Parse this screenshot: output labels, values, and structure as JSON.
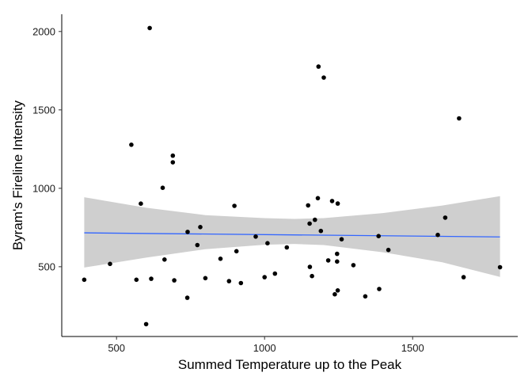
{
  "chart_data": {
    "type": "scatter",
    "title": "",
    "xlabel": "Summed Temperature up to the Peak",
    "ylabel": "Byram's Fireline Intensity",
    "xlim": [
      315,
      1855
    ],
    "ylim": [
      55,
      2110
    ],
    "x_ticks": [
      500,
      1000,
      1500
    ],
    "y_ticks": [
      500,
      1000,
      1500,
      2000
    ],
    "grid": false,
    "legend": "none",
    "colors": {
      "points": "#000000",
      "fit_line": "#3366ff",
      "ribbon": "#cccccc",
      "axis": "#000000"
    },
    "points": [
      {
        "x": 391,
        "y": 417
      },
      {
        "x": 478,
        "y": 518
      },
      {
        "x": 550,
        "y": 1278
      },
      {
        "x": 567,
        "y": 417
      },
      {
        "x": 582,
        "y": 902
      },
      {
        "x": 600,
        "y": 134
      },
      {
        "x": 612,
        "y": 2022
      },
      {
        "x": 617,
        "y": 423
      },
      {
        "x": 656,
        "y": 1003
      },
      {
        "x": 662,
        "y": 546
      },
      {
        "x": 690,
        "y": 1208
      },
      {
        "x": 690,
        "y": 1166
      },
      {
        "x": 695,
        "y": 413
      },
      {
        "x": 739,
        "y": 302
      },
      {
        "x": 740,
        "y": 722
      },
      {
        "x": 773,
        "y": 638
      },
      {
        "x": 783,
        "y": 753
      },
      {
        "x": 800,
        "y": 427
      },
      {
        "x": 851,
        "y": 551
      },
      {
        "x": 880,
        "y": 408
      },
      {
        "x": 898,
        "y": 888
      },
      {
        "x": 905,
        "y": 599
      },
      {
        "x": 920,
        "y": 396
      },
      {
        "x": 970,
        "y": 692
      },
      {
        "x": 1000,
        "y": 433
      },
      {
        "x": 1010,
        "y": 650
      },
      {
        "x": 1035,
        "y": 456
      },
      {
        "x": 1075,
        "y": 623
      },
      {
        "x": 1147,
        "y": 891
      },
      {
        "x": 1152,
        "y": 775
      },
      {
        "x": 1153,
        "y": 499
      },
      {
        "x": 1160,
        "y": 440
      },
      {
        "x": 1170,
        "y": 799
      },
      {
        "x": 1180,
        "y": 937
      },
      {
        "x": 1182,
        "y": 1776
      },
      {
        "x": 1190,
        "y": 728
      },
      {
        "x": 1200,
        "y": 1706
      },
      {
        "x": 1215,
        "y": 540
      },
      {
        "x": 1228,
        "y": 919
      },
      {
        "x": 1237,
        "y": 324
      },
      {
        "x": 1245,
        "y": 582
      },
      {
        "x": 1245,
        "y": 533
      },
      {
        "x": 1247,
        "y": 903
      },
      {
        "x": 1247,
        "y": 349
      },
      {
        "x": 1260,
        "y": 675
      },
      {
        "x": 1300,
        "y": 510
      },
      {
        "x": 1340,
        "y": 311
      },
      {
        "x": 1385,
        "y": 695
      },
      {
        "x": 1387,
        "y": 358
      },
      {
        "x": 1418,
        "y": 607
      },
      {
        "x": 1585,
        "y": 703
      },
      {
        "x": 1610,
        "y": 813
      },
      {
        "x": 1657,
        "y": 1446
      },
      {
        "x": 1672,
        "y": 433
      },
      {
        "x": 1795,
        "y": 497
      }
    ],
    "fit": {
      "method": "linear",
      "line": [
        {
          "x": 391,
          "y": 716
        },
        {
          "x": 1795,
          "y": 690
        }
      ],
      "ribbon": [
        {
          "x": 391,
          "lower": 495,
          "upper": 943
        },
        {
          "x": 600,
          "lower": 558,
          "upper": 876
        },
        {
          "x": 800,
          "lower": 612,
          "upper": 829
        },
        {
          "x": 1000,
          "lower": 640,
          "upper": 810
        },
        {
          "x": 1100,
          "lower": 645,
          "upper": 805
        },
        {
          "x": 1200,
          "lower": 638,
          "upper": 810
        },
        {
          "x": 1400,
          "lower": 592,
          "upper": 842
        },
        {
          "x": 1600,
          "lower": 528,
          "upper": 890
        },
        {
          "x": 1795,
          "lower": 435,
          "upper": 950
        }
      ]
    }
  }
}
